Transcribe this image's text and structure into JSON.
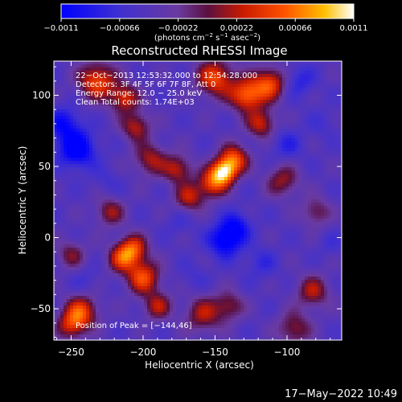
{
  "chart_data": {
    "type": "heatmap",
    "title": "Reconstructed RHESSI Image",
    "xlabel": "Heliocentric X (arcsec)",
    "ylabel": "Heliocentric Y (arcsec)",
    "xlim": [
      -262,
      -62
    ],
    "ylim": [
      -72,
      124
    ],
    "x_ticks": [
      {
        "value": -250,
        "label": "−250"
      },
      {
        "value": -200,
        "label": "−200"
      },
      {
        "value": -150,
        "label": "−150"
      },
      {
        "value": -100,
        "label": "−100"
      }
    ],
    "y_ticks": [
      {
        "value": -50,
        "label": "−50"
      },
      {
        "value": 0,
        "label": "0"
      },
      {
        "value": 50,
        "label": "50"
      },
      {
        "value": 100,
        "label": "100"
      }
    ],
    "colorbar": {
      "min": -0.0011,
      "max": 0.0011,
      "ticks": [
        {
          "value": -0.0011,
          "label": "−0.0011"
        },
        {
          "value": -0.00066,
          "label": "−0.00066"
        },
        {
          "value": -0.00022,
          "label": "−0.00022"
        },
        {
          "value": 0.00022,
          "label": "0.00022"
        },
        {
          "value": 0.00066,
          "label": "0.00066"
        },
        {
          "value": 0.0011,
          "label": "0.0011"
        }
      ],
      "units_parts": [
        "(photons cm",
        "−2",
        " s",
        "−1",
        " asec",
        "−2",
        ")"
      ]
    },
    "annotations": [
      "22−Oct−2013 12:53:32.000 to 12:54:28.000",
      "Detectors: 3F 4F 5F 6F 7F 8F, Att 0",
      "Energy Range: 12.0 − 25.0 keV",
      "Clean    Total counts: 1.74E+03"
    ],
    "peak_label": "Position of Peak = [−144,46]",
    "peak": [
      -144,
      46
    ],
    "blobs": [
      {
        "x": -144,
        "y": 46,
        "v": 0.00108,
        "s": 6
      },
      {
        "x": -137,
        "y": 55,
        "v": 0.00085,
        "s": 7
      },
      {
        "x": -152,
        "y": 38,
        "v": 0.00075,
        "s": 7
      },
      {
        "x": -128,
        "y": 100,
        "v": 0.0009,
        "s": 8
      },
      {
        "x": -112,
        "y": 108,
        "v": 0.0008,
        "s": 8
      },
      {
        "x": -150,
        "y": 112,
        "v": 0.0008,
        "s": 9
      },
      {
        "x": -118,
        "y": 80,
        "v": 0.0006,
        "s": 7
      },
      {
        "x": -232,
        "y": 110,
        "v": 0.0008,
        "s": 9
      },
      {
        "x": -213,
        "y": 98,
        "v": 0.00065,
        "s": 7
      },
      {
        "x": -205,
        "y": 78,
        "v": 0.00055,
        "s": 7
      },
      {
        "x": -195,
        "y": 55,
        "v": 0.0005,
        "s": 8
      },
      {
        "x": -176,
        "y": 48,
        "v": 0.00055,
        "s": 7
      },
      {
        "x": -223,
        "y": 18,
        "v": 0.00045,
        "s": 7
      },
      {
        "x": -168,
        "y": 28,
        "v": 0.00055,
        "s": 7
      },
      {
        "x": -215,
        "y": -15,
        "v": 0.0006,
        "s": 7
      },
      {
        "x": -207,
        "y": -8,
        "v": 0.00075,
        "s": 7
      },
      {
        "x": -200,
        "y": -28,
        "v": 0.0008,
        "s": 8
      },
      {
        "x": -190,
        "y": -48,
        "v": 0.0005,
        "s": 7
      },
      {
        "x": -243,
        "y": -52,
        "v": 0.00075,
        "s": 8
      },
      {
        "x": -250,
        "y": -62,
        "v": 0.00055,
        "s": 7
      },
      {
        "x": -158,
        "y": -54,
        "v": 0.0005,
        "s": 9
      },
      {
        "x": -140,
        "y": -48,
        "v": 0.0004,
        "s": 7
      },
      {
        "x": -82,
        "y": -38,
        "v": 0.0005,
        "s": 8
      },
      {
        "x": -95,
        "y": -64,
        "v": 0.00045,
        "s": 8
      },
      {
        "x": -103,
        "y": 40,
        "v": 0.00045,
        "s": 8
      },
      {
        "x": -80,
        "y": 18,
        "v": 0.00035,
        "s": 7
      },
      {
        "x": -250,
        "y": -12,
        "v": 0.00035,
        "s": 7
      },
      {
        "x": -246,
        "y": 62,
        "v": -0.00095,
        "s": 9
      },
      {
        "x": -255,
        "y": 80,
        "v": -0.0007,
        "s": 8
      },
      {
        "x": -143,
        "y": -2,
        "v": -0.0009,
        "s": 8
      },
      {
        "x": -135,
        "y": 8,
        "v": -0.00065,
        "s": 7
      },
      {
        "x": -100,
        "y": 65,
        "v": -0.00045,
        "s": 8
      },
      {
        "x": -92,
        "y": 110,
        "v": -0.0005,
        "s": 8
      },
      {
        "x": -225,
        "y": 40,
        "v": -0.0003,
        "s": 7
      },
      {
        "x": -175,
        "y": 10,
        "v": -0.0003,
        "s": 7
      },
      {
        "x": -118,
        "y": -18,
        "v": -0.0004,
        "s": 8
      },
      {
        "x": -165,
        "y": -28,
        "v": -0.0003,
        "s": 7
      },
      {
        "x": -75,
        "y": 80,
        "v": -0.0003,
        "s": 7
      },
      {
        "x": -70,
        "y": -5,
        "v": -0.0003,
        "s": 6
      },
      {
        "x": -240,
        "y": -30,
        "v": -0.0003,
        "s": 7
      }
    ]
  },
  "footer": {
    "timestamp": "17−May−2022 10:49"
  }
}
